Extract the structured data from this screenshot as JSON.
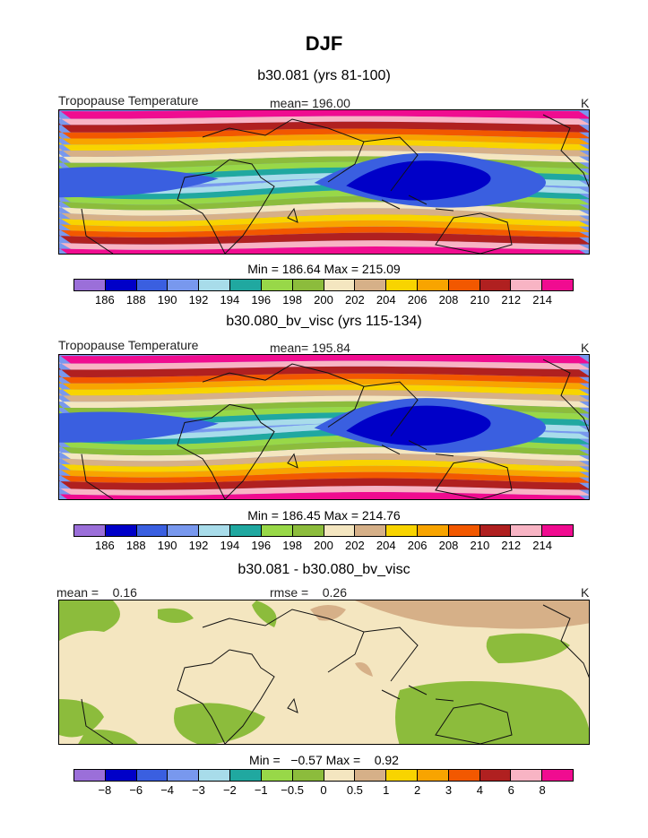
{
  "title": "DJF",
  "panels": [
    {
      "subtitle": "b30.081 (yrs 81-100)",
      "left_label": "Tropopause Temperature",
      "center_label": "mean= 196.00",
      "right_label": "K",
      "minmax": "Min = 186.64 Max = 215.09",
      "colorbar_labels": [
        "186",
        "188",
        "190",
        "192",
        "194",
        "196",
        "198",
        "200",
        "202",
        "204",
        "206",
        "208",
        "210",
        "212",
        "214"
      ]
    },
    {
      "subtitle": "b30.080_bv_visc (yrs 115-134)",
      "left_label": "Tropopause Temperature",
      "center_label": "mean= 195.84",
      "right_label": "K",
      "minmax": "Min = 186.45 Max = 214.76",
      "colorbar_labels": [
        "186",
        "188",
        "190",
        "192",
        "194",
        "196",
        "198",
        "200",
        "202",
        "204",
        "206",
        "208",
        "210",
        "212",
        "214"
      ]
    },
    {
      "subtitle": "b30.081 - b30.080_bv_visc",
      "left_label": "mean =    0.16",
      "center_label": "rmse =    0.26",
      "right_label": "K",
      "minmax": "Min =   −0.57 Max =    0.92",
      "colorbar_labels": [
        "−8",
        "−6",
        "−4",
        "−3",
        "−2",
        "−1",
        "−0.5",
        "0",
        "0.5",
        "1",
        "2",
        "3",
        "4",
        "6",
        "8"
      ]
    }
  ],
  "colors": [
    "#9b6fd9",
    "#0000c8",
    "#3a5fe0",
    "#7898ee",
    "#a8dcea",
    "#20a8a0",
    "#98d848",
    "#8cbc3c",
    "#f4e6c0",
    "#d6b088",
    "#f8d400",
    "#f8a400",
    "#f25800",
    "#b02020",
    "#f8b4c4",
    "#f00c90"
  ],
  "chart_data": [
    {
      "type": "heatmap",
      "title": "b30.081 (yrs 81-100)",
      "variable": "Tropopause Temperature",
      "units": "K",
      "mean": 196.0,
      "min": 186.64,
      "max": 215.09,
      "levels": [
        186,
        188,
        190,
        192,
        194,
        196,
        198,
        200,
        202,
        204,
        206,
        208,
        210,
        212,
        214
      ]
    },
    {
      "type": "heatmap",
      "title": "b30.080_bv_visc (yrs 115-134)",
      "variable": "Tropopause Temperature",
      "units": "K",
      "mean": 195.84,
      "min": 186.45,
      "max": 214.76,
      "levels": [
        186,
        188,
        190,
        192,
        194,
        196,
        198,
        200,
        202,
        204,
        206,
        208,
        210,
        212,
        214
      ]
    },
    {
      "type": "heatmap",
      "title": "b30.081 - b30.080_bv_visc",
      "units": "K",
      "mean": 0.16,
      "rmse": 0.26,
      "min": -0.57,
      "max": 0.92,
      "levels": [
        -8,
        -6,
        -4,
        -3,
        -2,
        -1,
        -0.5,
        0,
        0.5,
        1,
        2,
        3,
        4,
        6,
        8
      ]
    }
  ]
}
